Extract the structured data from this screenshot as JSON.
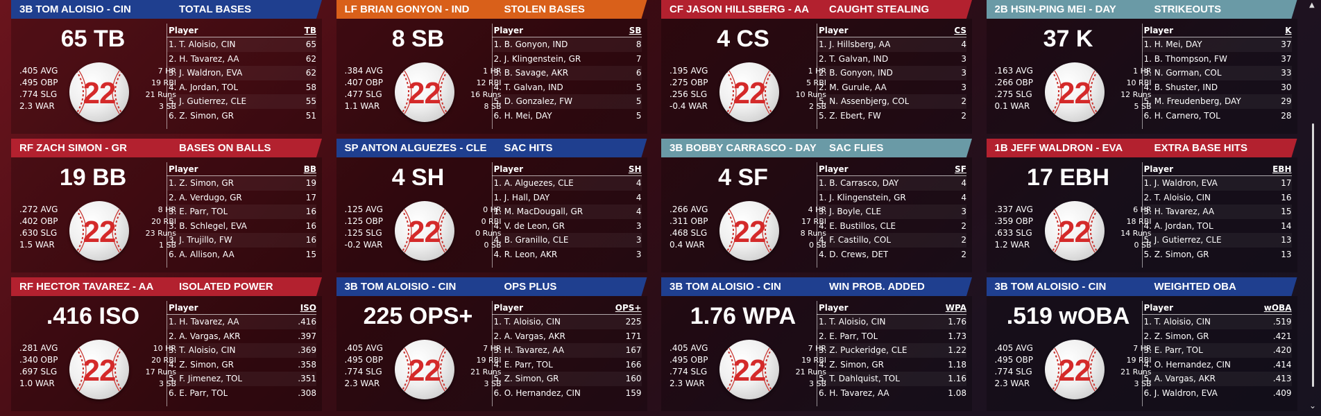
{
  "cards": [
    {
      "banner": "3B TOM ALOISIO - CIN",
      "category": "TOTAL BASES",
      "banner_color": "#1f3f8f",
      "big": "65 TB",
      "left_stats": [
        ".405 AVG",
        ".495 OBP",
        ".774 SLG",
        "2.3 WAR"
      ],
      "right_stats": [
        "7 HR",
        "19 RBI",
        "21 Runs",
        "3 SB"
      ],
      "col_header": "TB",
      "rows": [
        [
          "1. T. Aloisio, CIN",
          "65"
        ],
        [
          "2. H. Tavarez, AA",
          "62"
        ],
        [
          "3. J. Waldron, EVA",
          "62"
        ],
        [
          "4. A. Jordan, TOL",
          "58"
        ],
        [
          "5. J. Gutierrez, CLE",
          "55"
        ],
        [
          "6. Z. Simon, GR",
          "51"
        ]
      ]
    },
    {
      "banner": "LF BRIAN GONYON - IND",
      "category": "STOLEN BASES",
      "banner_color": "#d9601a",
      "big": "8 SB",
      "left_stats": [
        ".384 AVG",
        ".407 OBP",
        ".477 SLG",
        "1.1 WAR"
      ],
      "right_stats": [
        "1 HR",
        "12 RBI",
        "16 Runs",
        "8 SB"
      ],
      "col_header": "SB",
      "rows": [
        [
          "1. B. Gonyon, IND",
          "8"
        ],
        [
          "2. J. Klingenstein, GR",
          "7"
        ],
        [
          "3. B. Savage, AKR",
          "6"
        ],
        [
          "4. T. Galvan, IND",
          "5"
        ],
        [
          "5. D. Gonzalez, FW",
          "5"
        ],
        [
          "6. H. Mei, DAY",
          "5"
        ]
      ]
    },
    {
      "banner": "CF JASON HILLSBERG - AA",
      "category": "CAUGHT STEALING",
      "banner_color": "#b3212f",
      "big": "4 CS",
      "left_stats": [
        ".195 AVG",
        ".275 OBP",
        ".256 SLG",
        "-0.4 WAR"
      ],
      "right_stats": [
        "1 HR",
        "5 RBI",
        "10 Runs",
        "2 SB"
      ],
      "col_header": "CS",
      "rows": [
        [
          "1. J. Hillsberg, AA",
          "4"
        ],
        [
          "2. T. Galvan, IND",
          "3"
        ],
        [
          "2. B. Gonyon, IND",
          "3"
        ],
        [
          "2. M. Gurule, AA",
          "3"
        ],
        [
          "5. N. Assenbjerg, COL",
          "2"
        ],
        [
          "5. Z. Ebert, FW",
          "2"
        ]
      ]
    },
    {
      "banner": "2B HSIN-PING MEI - DAY",
      "category": "STRIKEOUTS",
      "banner_color": "#6a9aa6",
      "big": "37 K",
      "left_stats": [
        ".163 AVG",
        ".266 OBP",
        ".275 SLG",
        "0.1 WAR"
      ],
      "right_stats": [
        "1 HR",
        "10 RBI",
        "12 Runs",
        "5 SB"
      ],
      "col_header": "K",
      "rows": [
        [
          "1. H. Mei, DAY",
          "37"
        ],
        [
          "1. B. Thompson, FW",
          "37"
        ],
        [
          "3. N. Gorman, COL",
          "33"
        ],
        [
          "4. B. Shuster, IND",
          "30"
        ],
        [
          "5. M. Freudenberg, DAY",
          "29"
        ],
        [
          "6. H. Carnero, TOL",
          "28"
        ]
      ]
    },
    {
      "banner": "RF ZACH SIMON - GR",
      "category": "BASES ON BALLS",
      "banner_color": "#b3212f",
      "big": "19 BB",
      "left_stats": [
        ".272 AVG",
        ".402 OBP",
        ".630 SLG",
        "1.5 WAR"
      ],
      "right_stats": [
        "8 HR",
        "20 RBI",
        "23 Runs",
        "1 SB"
      ],
      "col_header": "BB",
      "rows": [
        [
          "1. Z. Simon, GR",
          "19"
        ],
        [
          "2. A. Verdugo, GR",
          "17"
        ],
        [
          "3. E. Parr, TOL",
          "16"
        ],
        [
          "3. B. Schlegel, EVA",
          "16"
        ],
        [
          "3. J. Trujillo, FW",
          "16"
        ],
        [
          "6. A. Allison, AA",
          "15"
        ]
      ]
    },
    {
      "banner": "SP ANTON ALGUEZES - CLE",
      "category": "SAC HITS",
      "banner_color": "#1f3f8f",
      "big": "4 SH",
      "left_stats": [
        ".125 AVG",
        ".125 OBP",
        ".125 SLG",
        "-0.2 WAR"
      ],
      "right_stats": [
        "0 HR",
        "0 RBI",
        "0 Runs",
        "0 SB"
      ],
      "col_header": "SH",
      "rows": [
        [
          "1. A. Alguezes, CLE",
          "4"
        ],
        [
          "1. J. Hall, DAY",
          "4"
        ],
        [
          "1. M. MacDougall, GR",
          "4"
        ],
        [
          "4. V. de Leon, GR",
          "3"
        ],
        [
          "4. B. Granillo, CLE",
          "3"
        ],
        [
          "4. R. Leon, AKR",
          "3"
        ]
      ]
    },
    {
      "banner": "3B BOBBY CARRASCO - DAY",
      "category": "SAC FLIES",
      "banner_color": "#6a9aa6",
      "big": "4 SF",
      "left_stats": [
        ".266 AVG",
        ".311 OBP",
        ".468 SLG",
        "0.4 WAR"
      ],
      "right_stats": [
        "4 HR",
        "17 RBI",
        "8 Runs",
        "0 SB"
      ],
      "col_header": "SF",
      "rows": [
        [
          "1. B. Carrasco, DAY",
          "4"
        ],
        [
          "1. J. Klingenstein, GR",
          "4"
        ],
        [
          "3. J. Boyle, CLE",
          "3"
        ],
        [
          "4. E. Bustillos, CLE",
          "2"
        ],
        [
          "4. F. Castillo, COL",
          "2"
        ],
        [
          "4. D. Crews, DET",
          "2"
        ]
      ]
    },
    {
      "banner": "1B JEFF WALDRON - EVA",
      "category": "EXTRA BASE HITS",
      "banner_color": "#b3212f",
      "big": "17 EBH",
      "left_stats": [
        ".337 AVG",
        ".359 OBP",
        ".633 SLG",
        "1.2 WAR"
      ],
      "right_stats": [
        "6 HR",
        "18 RBI",
        "14 Runs",
        "0 SB"
      ],
      "col_header": "EBH",
      "rows": [
        [
          "1. J. Waldron, EVA",
          "17"
        ],
        [
          "2. T. Aloisio, CIN",
          "16"
        ],
        [
          "3. H. Tavarez, AA",
          "15"
        ],
        [
          "4. A. Jordan, TOL",
          "14"
        ],
        [
          "5. J. Gutierrez, CLE",
          "13"
        ],
        [
          "5. Z. Simon, GR",
          "13"
        ]
      ]
    },
    {
      "banner": "RF HECTOR TAVAREZ - AA",
      "category": "ISOLATED POWER",
      "banner_color": "#b3212f",
      "big": ".416 ISO",
      "left_stats": [
        ".281 AVG",
        ".340 OBP",
        ".697 SLG",
        "1.0 WAR"
      ],
      "right_stats": [
        "10 HR",
        "20 RBI",
        "17 Runs",
        "3 SB"
      ],
      "col_header": "ISO",
      "rows": [
        [
          "1. H. Tavarez, AA",
          ".416"
        ],
        [
          "2. A. Vargas, AKR",
          ".397"
        ],
        [
          "3. T. Aloisio, CIN",
          ".369"
        ],
        [
          "4. Z. Simon, GR",
          ".358"
        ],
        [
          "5. F. Jimenez, TOL",
          ".351"
        ],
        [
          "6. E. Parr, TOL",
          ".308"
        ]
      ]
    },
    {
      "banner": "3B TOM ALOISIO - CIN",
      "category": "OPS PLUS",
      "banner_color": "#1f3f8f",
      "big": "225 OPS+",
      "left_stats": [
        ".405 AVG",
        ".495 OBP",
        ".774 SLG",
        "2.3 WAR"
      ],
      "right_stats": [
        "7 HR",
        "19 RBI",
        "21 Runs",
        "3 SB"
      ],
      "col_header": "OPS+",
      "rows": [
        [
          "1. T. Aloisio, CIN",
          "225"
        ],
        [
          "2. A. Vargas, AKR",
          "171"
        ],
        [
          "3. H. Tavarez, AA",
          "167"
        ],
        [
          "4. E. Parr, TOL",
          "166"
        ],
        [
          "5. Z. Simon, GR",
          "160"
        ],
        [
          "6. O. Hernandez, CIN",
          "159"
        ]
      ]
    },
    {
      "banner": "3B TOM ALOISIO - CIN",
      "category": "WIN PROB. ADDED",
      "banner_color": "#1f3f8f",
      "big": "1.76 WPA",
      "left_stats": [
        ".405 AVG",
        ".495 OBP",
        ".774 SLG",
        "2.3 WAR"
      ],
      "right_stats": [
        "7 HR",
        "19 RBI",
        "21 Runs",
        "3 SB"
      ],
      "col_header": "WPA",
      "rows": [
        [
          "1. T. Aloisio, CIN",
          "1.76"
        ],
        [
          "2. E. Parr, TOL",
          "1.73"
        ],
        [
          "3. Z. Puckeridge, CLE",
          "1.22"
        ],
        [
          "4. Z. Simon, GR",
          "1.18"
        ],
        [
          "5. T. Dahlquist, TOL",
          "1.16"
        ],
        [
          "6. H. Tavarez, AA",
          "1.08"
        ]
      ]
    },
    {
      "banner": "3B TOM ALOISIO - CIN",
      "category": "WEIGHTED OBA",
      "banner_color": "#1f3f8f",
      "big": ".519 wOBA",
      "left_stats": [
        ".405 AVG",
        ".495 OBP",
        ".774 SLG",
        "2.3 WAR"
      ],
      "right_stats": [
        "7 HR",
        "19 RBI",
        "21 Runs",
        "3 SB"
      ],
      "col_header": "wOBA",
      "rows": [
        [
          "1. T. Aloisio, CIN",
          ".519"
        ],
        [
          "2. Z. Simon, GR",
          ".421"
        ],
        [
          "3. E. Parr, TOL",
          ".420"
        ],
        [
          "4. O. Hernandez, CIN",
          ".414"
        ],
        [
          "5. A. Vargas, AKR",
          ".413"
        ],
        [
          "6. J. Waldron, EVA",
          ".409"
        ]
      ]
    }
  ],
  "player_header": "Player",
  "ball_number": "22",
  "scrollbar": {
    "up_arrow": "▲",
    "down_arrow": "⌄"
  }
}
